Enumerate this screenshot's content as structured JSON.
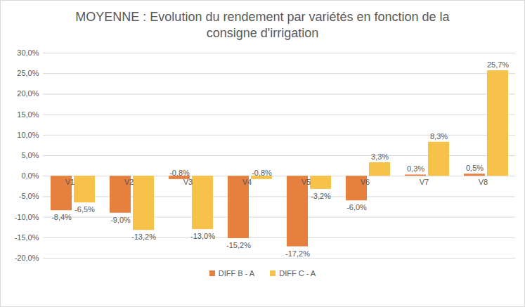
{
  "chart_data": {
    "type": "bar",
    "title": "MOYENNE : Evolution du rendement par variétés en fonction de la consigne d'irrigation",
    "categories": [
      "V1",
      "V2",
      "V3",
      "V4",
      "V5",
      "V6",
      "V7",
      "V8"
    ],
    "series": [
      {
        "name": "DIFF B - A",
        "color": "#e5803f",
        "values": [
          -8.4,
          -9.0,
          -0.8,
          -15.2,
          -17.2,
          -6.0,
          0.3,
          0.5
        ],
        "value_labels": [
          "-8,4%",
          "-9,0%",
          "-0,8%",
          "-15,2%",
          "-17,2%",
          "-6,0%",
          "0,3%",
          "0,5%"
        ]
      },
      {
        "name": "DIFF C - A",
        "color": "#f7c24a",
        "values": [
          -6.5,
          -13.2,
          -13.0,
          -0.8,
          -3.2,
          3.3,
          8.3,
          25.7
        ],
        "value_labels": [
          "-6,5%",
          "-13,2%",
          "-13,0%",
          "-0,8%",
          "-3,2%",
          "3,3%",
          "8,3%",
          "25,7%"
        ]
      }
    ],
    "ylim": [
      -20,
      30
    ],
    "yticks": [
      {
        "value": -20,
        "label": "-20,0%"
      },
      {
        "value": -15,
        "label": "-15,0%"
      },
      {
        "value": -10,
        "label": "-10,0%"
      },
      {
        "value": -5,
        "label": "-5,0%"
      },
      {
        "value": 0,
        "label": "0,0%"
      },
      {
        "value": 5,
        "label": "5,0%"
      },
      {
        "value": 10,
        "label": "10,0%"
      },
      {
        "value": 15,
        "label": "15,0%"
      },
      {
        "value": 20,
        "label": "20,0%"
      },
      {
        "value": 25,
        "label": "25,0%"
      },
      {
        "value": 30,
        "label": "30,0%"
      }
    ],
    "grid": true,
    "data_labels": true,
    "legend": "bottom"
  }
}
